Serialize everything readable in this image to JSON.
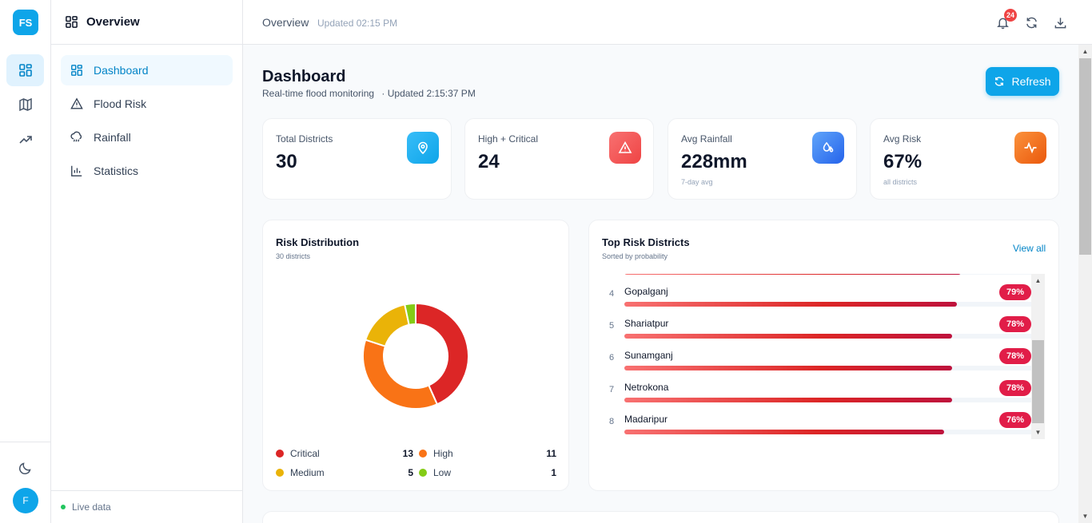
{
  "rail": {
    "logo": "FS",
    "avatar": "F",
    "icons": [
      "dashboard-icon",
      "map-icon",
      "trending-icon",
      "moon-icon"
    ]
  },
  "sidebar": {
    "title": "Overview",
    "items": [
      {
        "label": "Dashboard",
        "icon": "dashboard-icon",
        "active": true
      },
      {
        "label": "Flood Risk",
        "icon": "warning-icon",
        "active": false
      },
      {
        "label": "Rainfall",
        "icon": "rain-icon",
        "active": false
      },
      {
        "label": "Statistics",
        "icon": "bar-chart-icon",
        "active": false
      }
    ],
    "footer": "Live data"
  },
  "topbar": {
    "title": "Overview",
    "updated": "Updated 02:15 PM",
    "notification_count": "24"
  },
  "page": {
    "title": "Dashboard",
    "subtitle": "Real-time flood monitoring",
    "updated": "· Updated 2:15:37 PM",
    "refresh_label": "Refresh"
  },
  "stats": [
    {
      "label": "Total Districts",
      "value": "30",
      "note": "",
      "icon": "location-pin-icon",
      "color": "#0ea5e9"
    },
    {
      "label": "High + Critical",
      "value": "24",
      "note": "",
      "icon": "warning-icon",
      "color": "#ef4444"
    },
    {
      "label": "Avg Rainfall",
      "value": "228mm",
      "note": "7-day avg",
      "icon": "droplet-icon",
      "color": "#3b82f6"
    },
    {
      "label": "Avg Risk",
      "value": "67%",
      "note": "all districts",
      "icon": "activity-icon",
      "color": "#f97316"
    }
  ],
  "risk_distribution": {
    "title": "Risk Distribution",
    "subtitle": "30 districts",
    "legend": [
      {
        "label": "Critical",
        "count": "13",
        "color": "#dc2626"
      },
      {
        "label": "High",
        "count": "11",
        "color": "#f97316"
      },
      {
        "label": "Medium",
        "count": "5",
        "color": "#eab308"
      },
      {
        "label": "Low",
        "count": "1",
        "color": "#84cc16"
      }
    ]
  },
  "chart_data": {
    "type": "pie",
    "categories": [
      "Critical",
      "High",
      "Medium",
      "Low"
    ],
    "values": [
      13,
      11,
      5,
      1
    ],
    "colors": [
      "#dc2626",
      "#f97316",
      "#eab308",
      "#84cc16"
    ],
    "title": "Risk Distribution"
  },
  "top_risk": {
    "title": "Top Risk Districts",
    "subtitle": "Sorted by probability",
    "view_all": "View all",
    "rows": [
      {
        "rank": "",
        "name": "",
        "percent": "",
        "value": 0.8
      },
      {
        "rank": "4",
        "name": "Gopalganj",
        "percent": "79%",
        "value": 0.79
      },
      {
        "rank": "5",
        "name": "Shariatpur",
        "percent": "78%",
        "value": 0.78
      },
      {
        "rank": "6",
        "name": "Sunamganj",
        "percent": "78%",
        "value": 0.78
      },
      {
        "rank": "7",
        "name": "Netrokona",
        "percent": "78%",
        "value": 0.78
      },
      {
        "rank": "8",
        "name": "Madaripur",
        "percent": "76%",
        "value": 0.76
      }
    ]
  }
}
